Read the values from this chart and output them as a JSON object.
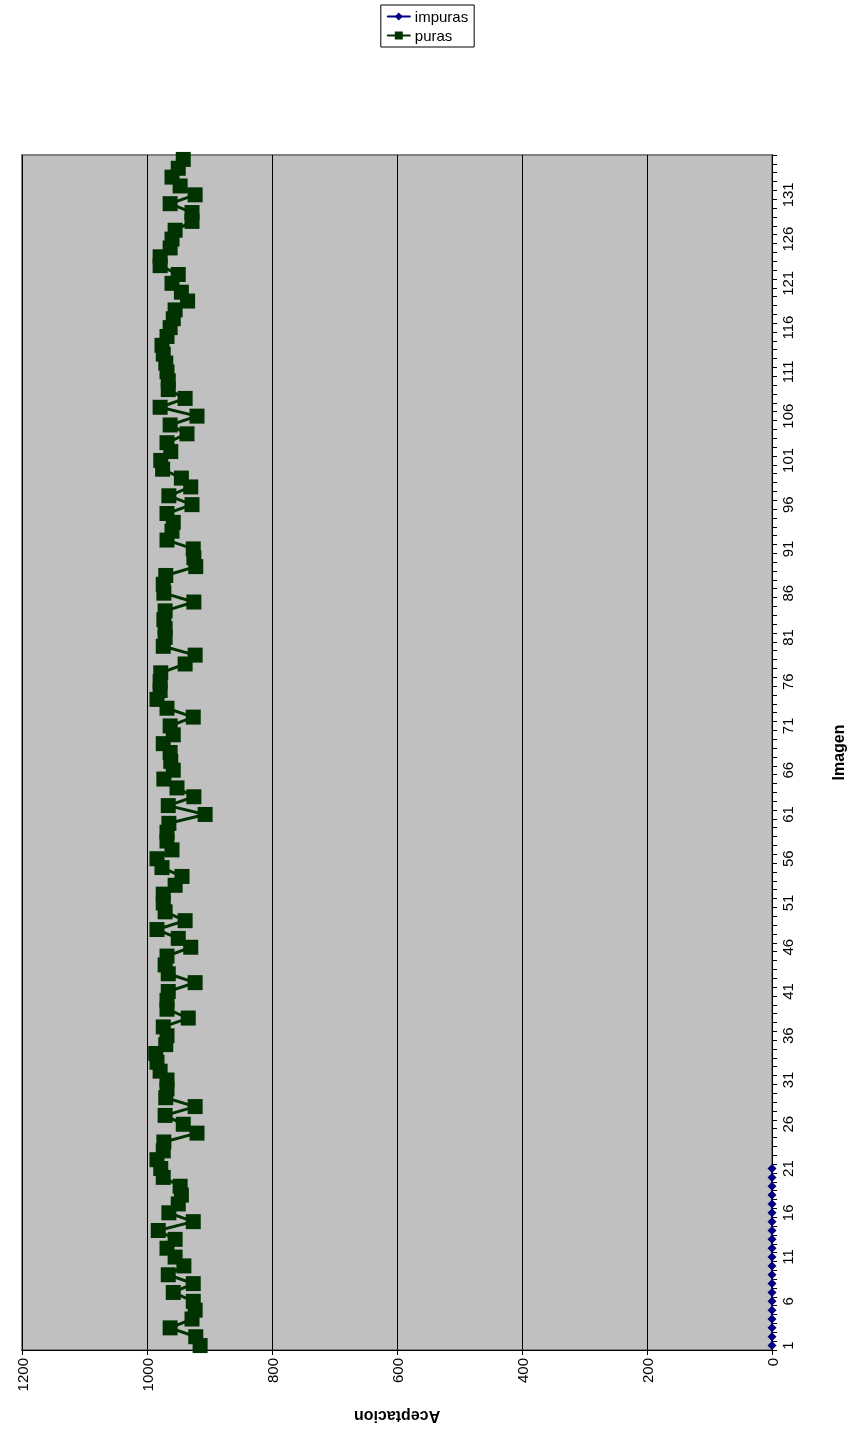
{
  "chart_data": {
    "type": "line",
    "orientation": "horizontal",
    "xlabel": "Aceptacion",
    "ylabel": "Imagen",
    "categories": [
      null,
      null,
      null,
      null,
      "131",
      null,
      null,
      null,
      null,
      "126",
      null,
      null,
      null,
      null,
      "121",
      null,
      null,
      null,
      null,
      "116",
      null,
      null,
      null,
      null,
      "111",
      null,
      null,
      null,
      null,
      "106",
      null,
      null,
      null,
      null,
      "101",
      null,
      null,
      null,
      null,
      "96",
      null,
      null,
      null,
      null,
      "91",
      null,
      null,
      null,
      null,
      "86",
      null,
      null,
      null,
      null,
      "81",
      null,
      null,
      null,
      null,
      "76",
      null,
      null,
      null,
      null,
      "71",
      null,
      null,
      null,
      null,
      "66",
      null,
      null,
      null,
      null,
      "61",
      null,
      null,
      null,
      null,
      "56",
      null,
      null,
      null,
      null,
      "51",
      null,
      null,
      null,
      null,
      "46",
      null,
      null,
      null,
      null,
      "41",
      null,
      null,
      null,
      null,
      "36",
      null,
      null,
      null,
      null,
      "31",
      null,
      null,
      null,
      null,
      "26",
      null,
      null,
      null,
      null,
      "21",
      null,
      null,
      null,
      null,
      "16",
      null,
      null,
      null,
      null,
      "11",
      null,
      null,
      null,
      null,
      "6",
      null,
      null,
      null,
      null,
      "1"
    ],
    "series": [
      {
        "name": "impuras",
        "color": "#000080",
        "marker": "diamond",
        "values": [
          null,
          null,
          null,
          null,
          null,
          null,
          null,
          null,
          null,
          null,
          null,
          null,
          null,
          null,
          null,
          null,
          null,
          null,
          null,
          null,
          null,
          null,
          null,
          null,
          null,
          null,
          null,
          null,
          null,
          null,
          null,
          null,
          null,
          null,
          null,
          null,
          null,
          null,
          null,
          null,
          null,
          null,
          null,
          null,
          null,
          null,
          null,
          null,
          null,
          null,
          null,
          null,
          null,
          null,
          null,
          null,
          null,
          null,
          null,
          null,
          null,
          null,
          null,
          null,
          null,
          null,
          null,
          null,
          null,
          null,
          null,
          null,
          null,
          null,
          null,
          null,
          null,
          null,
          null,
          null,
          null,
          null,
          null,
          null,
          null,
          null,
          null,
          null,
          null,
          null,
          null,
          null,
          null,
          null,
          null,
          null,
          null,
          null,
          null,
          null,
          null,
          null,
          null,
          null,
          null,
          null,
          null,
          null,
          null,
          null,
          null,
          null,
          null,
          null,
          0,
          0,
          0,
          0,
          0,
          0,
          0,
          0,
          0,
          0,
          0,
          0,
          0,
          0,
          0,
          0,
          0,
          0,
          0,
          0,
          0
        ]
      },
      {
        "name": "puras",
        "color": "#003300",
        "marker": "square",
        "values": [
          942,
          950,
          960,
          947,
          923,
          963,
          928,
          928,
          955,
          960,
          963,
          979,
          979,
          950,
          960,
          945,
          935,
          955,
          958,
          963,
          968,
          976,
          974,
          970,
          968,
          966,
          966,
          939,
          979,
          920,
          963,
          936,
          968,
          962,
          978,
          975,
          945,
          930,
          965,
          928,
          968,
          958,
          960,
          968,
          926,
          925,
          922,
          970,
          974,
          973,
          925,
          971,
          973,
          971,
          971,
          974,
          923,
          939,
          978,
          979,
          979,
          984,
          968,
          926,
          963,
          958,
          974,
          963,
          962,
          958,
          973,
          952,
          925,
          966,
          907,
          965,
          968,
          968,
          960,
          984,
          976,
          944,
          955,
          974,
          974,
          971,
          939,
          984,
          950,
          930,
          968,
          971,
          966,
          923,
          966,
          968,
          968,
          934,
          974,
          968,
          970,
          986,
          984,
          979,
          968,
          968,
          970,
          923,
          971,
          942,
          920,
          973,
          974,
          984,
          978,
          974,
          947,
          945,
          950,
          965,
          926,
          982,
          955,
          968,
          955,
          941,
          966,
          926,
          958,
          926,
          923,
          928,
          963,
          922,
          915
        ]
      }
    ],
    "xlim": [
      1200,
      0
    ],
    "xticks": [
      0,
      200,
      400,
      600,
      800,
      1000,
      1200
    ],
    "grid": "x",
    "legend": "top",
    "line_style": "solid"
  }
}
